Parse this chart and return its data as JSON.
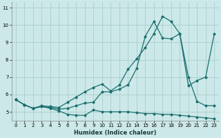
{
  "xlabel": "Humidex (Indice chaleur)",
  "xlim": [
    -0.5,
    23.5
  ],
  "ylim": [
    4.5,
    11.3
  ],
  "yticks": [
    5,
    6,
    7,
    8,
    9,
    10,
    11
  ],
  "xticks": [
    0,
    1,
    2,
    3,
    4,
    5,
    6,
    7,
    8,
    9,
    10,
    11,
    12,
    13,
    14,
    15,
    16,
    17,
    18,
    19,
    20,
    21,
    22,
    23
  ],
  "bg_color": "#cce8e8",
  "grid_color": "#aacece",
  "line_color": "#1a6e6e",
  "series": [
    {
      "x": [
        0,
        1,
        2,
        3,
        4,
        5,
        6,
        7,
        8,
        9,
        10,
        11,
        12,
        13,
        14,
        15,
        16,
        17,
        18,
        19,
        20,
        21,
        22,
        23
      ],
      "y": [
        5.7,
        5.4,
        5.2,
        5.3,
        5.2,
        5.05,
        4.85,
        4.8,
        4.8,
        5.1,
        5.0,
        5.0,
        5.0,
        5.0,
        4.95,
        4.9,
        4.9,
        4.85,
        4.85,
        4.8,
        4.75,
        4.7,
        4.65,
        4.6
      ]
    },
    {
      "x": [
        0,
        1,
        2,
        3,
        4,
        5,
        6,
        7,
        8,
        9,
        10,
        11,
        12,
        13,
        14,
        15,
        16,
        17,
        18,
        19,
        20,
        21,
        22,
        23
      ],
      "y": [
        5.7,
        5.4,
        5.2,
        5.3,
        5.25,
        5.15,
        5.2,
        5.35,
        5.5,
        5.55,
        6.15,
        6.15,
        6.3,
        6.55,
        7.5,
        9.35,
        10.2,
        9.25,
        9.2,
        9.5,
        7.0,
        5.6,
        5.35,
        5.35
      ]
    },
    {
      "x": [
        0,
        1,
        2,
        3,
        4,
        5,
        6,
        7,
        8,
        9,
        10,
        11,
        12,
        13,
        14,
        15,
        16,
        17,
        18,
        19,
        20,
        21,
        22,
        23
      ],
      "y": [
        5.7,
        5.4,
        5.2,
        5.35,
        5.3,
        5.25,
        5.55,
        5.85,
        6.15,
        6.4,
        6.6,
        6.2,
        6.55,
        7.45,
        8.05,
        8.7,
        9.5,
        10.5,
        10.2,
        9.5,
        6.5,
        6.8,
        7.0,
        9.5
      ]
    }
  ]
}
